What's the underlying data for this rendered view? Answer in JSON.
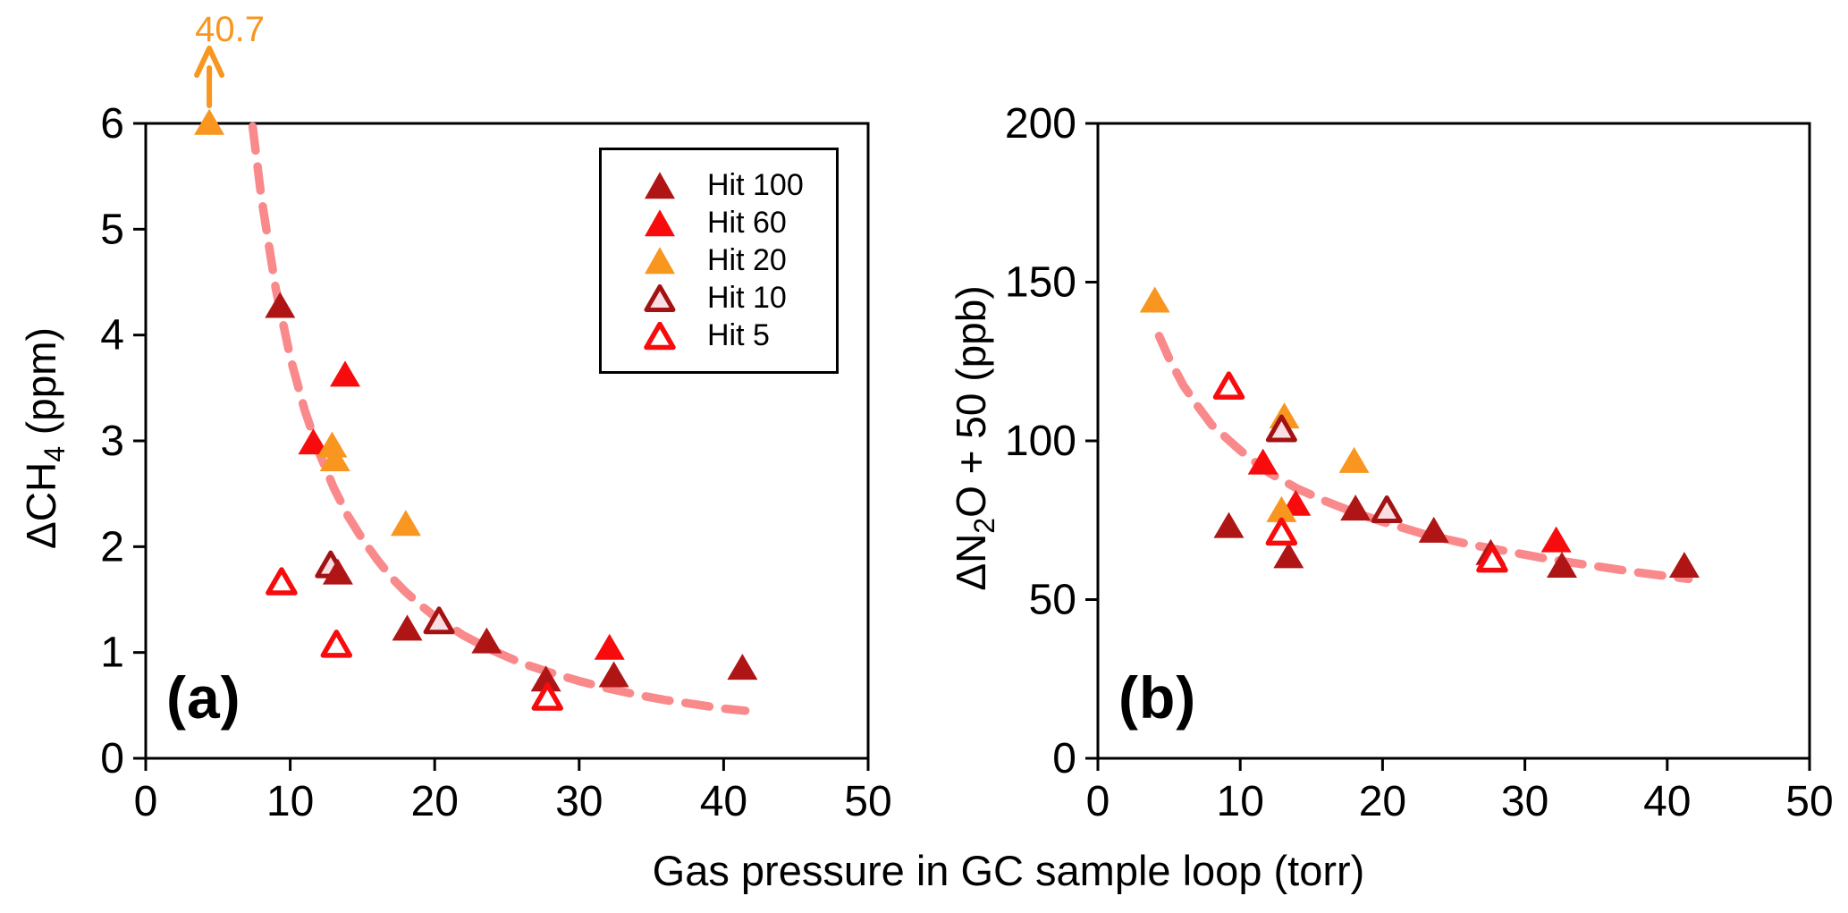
{
  "figure": {
    "xlabel": "Gas pressure in GC sample loop (torr)",
    "background": "#FFFFFF"
  },
  "colors": {
    "hit100": "#B01516",
    "hit60": "#F80B0D",
    "hit20": "#F8961F",
    "hit10_stroke": "#A31213",
    "hit10_fill": "#F9DEE3",
    "hit5_stroke": "#F80B0D",
    "hit5_fill": "#FFFFFF",
    "trend": "#F9898B",
    "annotation": "#F8961F",
    "axis": "#000000"
  },
  "legend": {
    "position": "top-right of panel (a)",
    "items": [
      {
        "label": "Hit 100",
        "series": "hit100"
      },
      {
        "label": "Hit 60",
        "series": "hit60"
      },
      {
        "label": "Hit 20",
        "series": "hit20"
      },
      {
        "label": "Hit 10",
        "series": "hit10"
      },
      {
        "label": "Hit 5",
        "series": "hit5"
      }
    ]
  },
  "chart_data": [
    {
      "type": "scatter",
      "panel_label": "(a)",
      "ylabel": {
        "prefix": "ΔCH",
        "sub": "4",
        "suffix": " (ppm)"
      },
      "xlabel": "Gas pressure in GC sample loop (torr)",
      "xlim": [
        0,
        50
      ],
      "ylim": [
        0,
        6
      ],
      "xticks": [
        0,
        10,
        20,
        30,
        40,
        50
      ],
      "yticks": [
        0,
        1,
        2,
        3,
        4,
        5,
        6
      ],
      "grid": false,
      "series": [
        {
          "name": "Hit 100",
          "key": "hit100",
          "marker": "filled-triangle",
          "points": [
            [
              9.3,
              4.27
            ],
            [
              13.3,
              1.75
            ],
            [
              18.1,
              1.22
            ],
            [
              23.6,
              1.1
            ],
            [
              27.7,
              0.74
            ],
            [
              32.4,
              0.78
            ],
            [
              41.3,
              0.85
            ]
          ]
        },
        {
          "name": "Hit 60",
          "key": "hit60",
          "marker": "filled-triangle",
          "points": [
            [
              11.6,
              2.98
            ],
            [
              13.8,
              3.62
            ],
            [
              32.1,
              1.04
            ]
          ]
        },
        {
          "name": "Hit 20",
          "key": "hit20",
          "marker": "filled-triangle",
          "points": [
            [
              4.4,
              6.0
            ],
            [
              12.9,
              2.95
            ],
            [
              13.1,
              2.82
            ],
            [
              18.0,
              2.21
            ]
          ]
        },
        {
          "name": "Hit 10",
          "key": "hit10",
          "marker": "open-triangle",
          "points": [
            [
              12.8,
              1.82
            ],
            [
              20.3,
              1.29
            ]
          ]
        },
        {
          "name": "Hit 5",
          "key": "hit5",
          "marker": "open-triangle",
          "points": [
            [
              9.4,
              1.66
            ],
            [
              13.2,
              1.07
            ],
            [
              27.8,
              0.57
            ]
          ]
        }
      ],
      "trend": {
        "style": "dashed",
        "points": [
          [
            7.4,
            5.97
          ],
          [
            8,
            5.3
          ],
          [
            9,
            4.44
          ],
          [
            10,
            3.79
          ],
          [
            11,
            3.29
          ],
          [
            12,
            2.89
          ],
          [
            13,
            2.56
          ],
          [
            14,
            2.29
          ],
          [
            15,
            2.07
          ],
          [
            16,
            1.88
          ],
          [
            17,
            1.71
          ],
          [
            18,
            1.57
          ],
          [
            19,
            1.45
          ],
          [
            20,
            1.34
          ],
          [
            22,
            1.16
          ],
          [
            24,
            1.02
          ],
          [
            26,
            0.9
          ],
          [
            28,
            0.81
          ],
          [
            30,
            0.73
          ],
          [
            32,
            0.66
          ],
          [
            34,
            0.6
          ],
          [
            36,
            0.55
          ],
          [
            38,
            0.51
          ],
          [
            40,
            0.47
          ],
          [
            41.5,
            0.45
          ]
        ]
      },
      "annotation": {
        "text": "40.7",
        "x": 4.4,
        "y_clipped_at": 6.0,
        "series": "hit20"
      }
    },
    {
      "type": "scatter",
      "panel_label": "(b)",
      "ylabel": {
        "prefix": "ΔN",
        "sub": "2",
        "suffix": "O + 50 (ppb)"
      },
      "xlabel": "Gas pressure in GC sample loop (torr)",
      "xlim": [
        0,
        50
      ],
      "ylim": [
        0,
        200
      ],
      "xticks": [
        0,
        10,
        20,
        30,
        40,
        50
      ],
      "yticks": [
        0,
        50,
        100,
        150,
        200
      ],
      "grid": false,
      "series": [
        {
          "name": "Hit 100",
          "key": "hit100",
          "marker": "filled-triangle",
          "points": [
            [
              9.2,
              73
            ],
            [
              13.4,
              63.5
            ],
            [
              18.1,
              78.5
            ],
            [
              23.6,
              71.5
            ],
            [
              27.6,
              64.5
            ],
            [
              32.6,
              60.5
            ],
            [
              41.2,
              60.5
            ]
          ]
        },
        {
          "name": "Hit 60",
          "key": "hit60",
          "marker": "filled-triangle",
          "points": [
            [
              11.6,
              93
            ],
            [
              13.9,
              80
            ],
            [
              32.2,
              68.5
            ]
          ]
        },
        {
          "name": "Hit 20",
          "key": "hit20",
          "marker": "filled-triangle",
          "points": [
            [
              4.0,
              144
            ],
            [
              12.9,
              78
            ],
            [
              13.1,
              107.5
            ],
            [
              18.0,
              93.5
            ]
          ]
        },
        {
          "name": "Hit 10",
          "key": "hit10",
          "marker": "open-triangle",
          "points": [
            [
              12.9,
              103.5
            ],
            [
              20.3,
              78
            ]
          ]
        },
        {
          "name": "Hit 5",
          "key": "hit5",
          "marker": "open-triangle",
          "points": [
            [
              9.2,
              117
            ],
            [
              12.9,
              71
            ],
            [
              27.7,
              62.5
            ]
          ]
        }
      ],
      "trend": {
        "style": "dashed",
        "points": [
          [
            4.3,
            133
          ],
          [
            5,
            126
          ],
          [
            6,
            117.5
          ],
          [
            7,
            111
          ],
          [
            8,
            105
          ],
          [
            9,
            101
          ],
          [
            10,
            97
          ],
          [
            12,
            90
          ],
          [
            14,
            85
          ],
          [
            16,
            81
          ],
          [
            18,
            77.5
          ],
          [
            20,
            74.5
          ],
          [
            23,
            70.5
          ],
          [
            26,
            67.5
          ],
          [
            29,
            65
          ],
          [
            32,
            62.5
          ],
          [
            35,
            60.5
          ],
          [
            38,
            58.5
          ],
          [
            41.5,
            56.5
          ]
        ]
      },
      "annotation": null
    }
  ]
}
